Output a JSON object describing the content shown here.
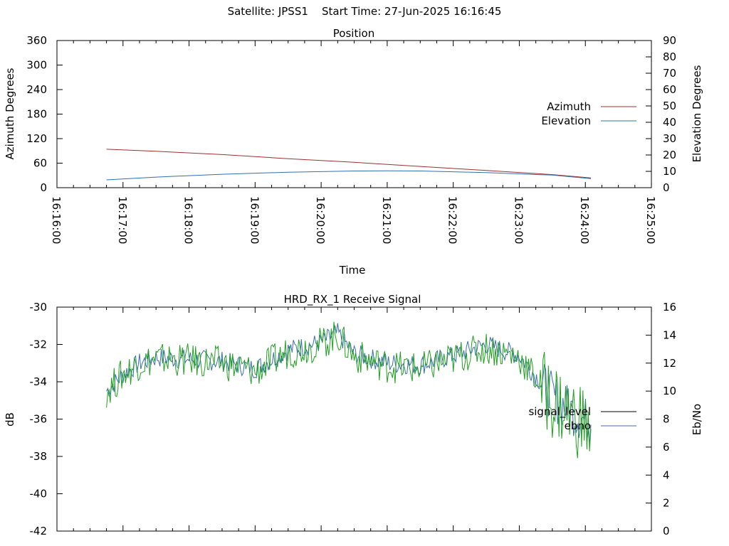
{
  "header": {
    "satellite": "Satellite: JPSS1",
    "start_time": "Start Time: 27-Jun-2025 16:16:45"
  },
  "chart_data": [
    {
      "type": "line",
      "title": "Position",
      "xlabel": "Time",
      "ylabel": "Azimuth Degrees",
      "y2label": "Elevation Degrees",
      "xlim": [
        "16:16:00",
        "16:25:00"
      ],
      "x_ticks": [
        "16:16:00",
        "16:17:00",
        "16:18:00",
        "16:19:00",
        "16:20:00",
        "16:21:00",
        "16:22:00",
        "16:23:00",
        "16:24:00",
        "16:25:00"
      ],
      "ylim": [
        0,
        360
      ],
      "y_ticks": [
        0,
        60,
        120,
        180,
        240,
        300,
        360
      ],
      "y2lim": [
        0,
        90
      ],
      "y2_ticks": [
        0,
        10,
        20,
        30,
        40,
        50,
        60,
        70,
        80,
        90
      ],
      "legend_position": "right",
      "grid": false,
      "series": [
        {
          "name": "Azimuth",
          "axis": "y",
          "color": "#a03030",
          "x": [
            "16:16:45",
            "16:17:30",
            "16:18:30",
            "16:19:30",
            "16:20:30",
            "16:21:30",
            "16:22:30",
            "16:23:30",
            "16:24:05"
          ],
          "values": [
            94,
            89,
            81,
            71,
            62,
            52,
            42,
            32,
            24
          ]
        },
        {
          "name": "Elevation",
          "axis": "y2",
          "color": "#3070b0",
          "x": [
            "16:16:45",
            "16:17:30",
            "16:18:30",
            "16:19:30",
            "16:20:30",
            "16:21:00",
            "16:21:30",
            "16:22:30",
            "16:23:30",
            "16:24:05"
          ],
          "values": [
            4.8,
            6.5,
            8.2,
            9.5,
            10.2,
            10.3,
            10.2,
            9.2,
            7.7,
            5.5
          ]
        }
      ]
    },
    {
      "type": "line",
      "title": "HRD_RX_1 Receive Signal",
      "ylabel": "dB",
      "y2label": "Eb/No",
      "xlim": [
        "16:16:00",
        "16:25:00"
      ],
      "ylim": [
        -42,
        -30
      ],
      "y_ticks": [
        -42,
        -40,
        -38,
        -36,
        -34,
        -32,
        -30
      ],
      "y2lim": [
        0,
        16
      ],
      "y2_ticks": [
        0,
        2,
        4,
        6,
        8,
        10,
        12,
        14,
        16
      ],
      "legend_position": "right",
      "grid": false,
      "series": [
        {
          "name": "signal_level",
          "axis": "y",
          "color": "#000000",
          "x": [
            "16:16:45",
            "16:17:00",
            "16:17:15",
            "16:17:30",
            "16:18:00",
            "16:18:30",
            "16:19:00",
            "16:19:30",
            "16:20:00",
            "16:20:15",
            "16:20:30",
            "16:21:00",
            "16:21:30",
            "16:22:00",
            "16:22:30",
            "16:23:00",
            "16:23:30",
            "16:24:05"
          ],
          "values": [
            -34.5,
            -33.6,
            -33.0,
            -32.7,
            -32.8,
            -32.9,
            -33.3,
            -32.3,
            -31.9,
            -31.4,
            -32.5,
            -33.0,
            -33.1,
            -32.6,
            -32.0,
            -32.6,
            -34.8,
            -36.3
          ]
        },
        {
          "name": "ebno",
          "axis": "y2",
          "color": "#3a6fb0",
          "x": [
            "16:16:45",
            "16:17:00",
            "16:17:15",
            "16:17:30",
            "16:18:00",
            "16:18:30",
            "16:19:00",
            "16:19:30",
            "16:20:00",
            "16:20:15",
            "16:20:30",
            "16:21:00",
            "16:21:30",
            "16:22:00",
            "16:22:30",
            "16:23:00",
            "16:23:30",
            "16:24:05"
          ],
          "values": [
            10.0,
            11.2,
            12.0,
            12.3,
            12.2,
            12.0,
            11.4,
            12.8,
            13.4,
            14.0,
            12.5,
            11.8,
            11.6,
            12.3,
            13.1,
            12.4,
            9.4,
            7.3
          ]
        }
      ]
    }
  ]
}
